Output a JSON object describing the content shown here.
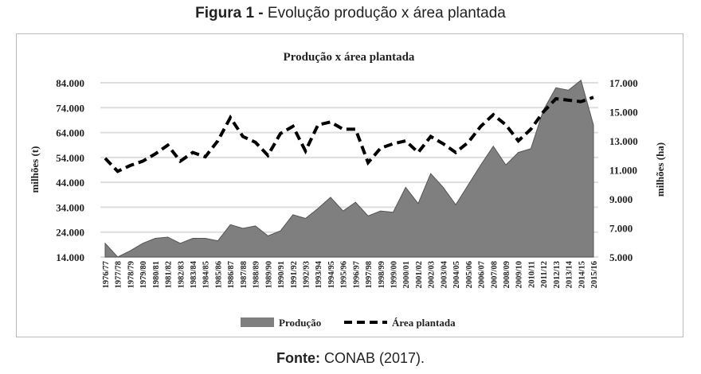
{
  "figure": {
    "label": "Figura 1 -",
    "title": "Evolução produção x área plantada"
  },
  "caption": {
    "label": "Fonte:",
    "text": "CONAB (2017)."
  },
  "chart_data": {
    "type": "area+line",
    "title": "Produção x área plantada",
    "ylabel": "milhões (t)",
    "y2label": "milhões (ha)",
    "ylim": [
      14000,
      84000
    ],
    "y2lim": [
      5000,
      17000
    ],
    "yticks": [
      "14.000",
      "24.000",
      "34.000",
      "44.000",
      "54.000",
      "64.000",
      "74.000",
      "84.000"
    ],
    "y2ticks": [
      "5.000",
      "7.000",
      "9.000",
      "11.000",
      "13.000",
      "15.000",
      "17.000"
    ],
    "categories": [
      "1976/77",
      "1977/78",
      "1978/79",
      "1979/80",
      "1980/81",
      "1981/82",
      "1982/83",
      "1983/84",
      "1984/85",
      "1985/86",
      "1986/87",
      "1987/88",
      "1988/89",
      "1989/90",
      "1990/91",
      "1991/92",
      "1992/93",
      "1993/94",
      "1994/95",
      "1995/96",
      "1996/97",
      "1997/98",
      "1998/99",
      "1999/00",
      "2000/01",
      "2001/02",
      "2002/03",
      "2003/04",
      "2004/05",
      "2005/06",
      "2006/07",
      "2007/08",
      "2008/09",
      "2009/10",
      "2010/11",
      "2011/12",
      "2012/13",
      "2013/14",
      "2014/15",
      "2015/16"
    ],
    "series": [
      {
        "name": "Produção",
        "type": "area",
        "axis": "left",
        "color": "#7f7f7f",
        "values": [
          19500,
          14000,
          16500,
          19500,
          21500,
          22000,
          19500,
          21500,
          21500,
          20500,
          27000,
          25500,
          26500,
          22500,
          24500,
          31000,
          29500,
          33500,
          38000,
          32500,
          36000,
          30500,
          32500,
          32000,
          42000,
          35500,
          47500,
          42000,
          35000,
          43000,
          51000,
          58500,
          51000,
          56000,
          57500,
          73000,
          82000,
          81000,
          85000,
          67000
        ]
      },
      {
        "name": "Área plantada",
        "type": "line",
        "axis": "right",
        "color": "#000000",
        "values": [
          11800,
          10900,
          11300,
          11600,
          12100,
          12700,
          11600,
          12200,
          11900,
          13000,
          14600,
          13300,
          12900,
          12000,
          13500,
          14000,
          12300,
          14100,
          14300,
          13800,
          13800,
          11500,
          12500,
          12800,
          13000,
          12200,
          13300,
          12800,
          12200,
          12900,
          14000,
          14800,
          14100,
          13000,
          13800,
          15000,
          15900,
          15800,
          15700,
          16000
        ]
      }
    ],
    "grid": true,
    "legend": "bottom"
  }
}
